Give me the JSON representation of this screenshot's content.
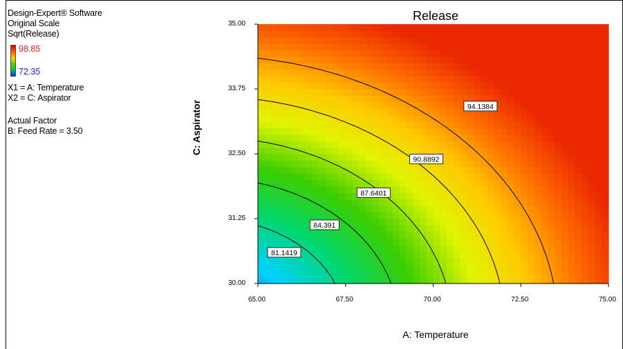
{
  "sidebar": {
    "software": "Design-Expert® Software",
    "scale": "Original Scale",
    "response": "Sqrt(Release)",
    "legend_high": "98.85",
    "legend_low": "72.35",
    "x1": "X1 = A: Temperature",
    "x2": "X2 = C: Aspirator",
    "actual_factor_heading": "Actual Factor",
    "actual_factor": "B: Feed Rate = 3.50"
  },
  "chart_data": {
    "type": "heatmap",
    "title": "Release",
    "xlabel": "A: Temperature",
    "ylabel": "C: Aspirator",
    "xlim": [
      65.0,
      75.0
    ],
    "ylim": [
      30.0,
      35.0
    ],
    "x_ticks": [
      "65.00",
      "67.50",
      "70.00",
      "72.50",
      "75.00"
    ],
    "y_ticks": [
      "30.00",
      "31.25",
      "32.50",
      "33.75",
      "35.00"
    ],
    "color_range": [
      72.35,
      98.85
    ],
    "colors": {
      "low": "#0030ff",
      "high": "#e00000"
    },
    "contours": [
      {
        "label": "81.1419",
        "value": 81.1419,
        "label_at": [
          65.75,
          30.6
        ]
      },
      {
        "label": "84.391",
        "value": 84.391,
        "label_at": [
          66.9,
          31.13
        ]
      },
      {
        "label": "87.6401",
        "value": 87.6401,
        "label_at": [
          68.3,
          31.75
        ]
      },
      {
        "label": "90.8892",
        "value": 90.8892,
        "label_at": [
          69.8,
          32.4
        ]
      },
      {
        "label": "94.1384",
        "value": 94.1384,
        "label_at": [
          71.35,
          33.42
        ]
      }
    ],
    "grid": false
  }
}
